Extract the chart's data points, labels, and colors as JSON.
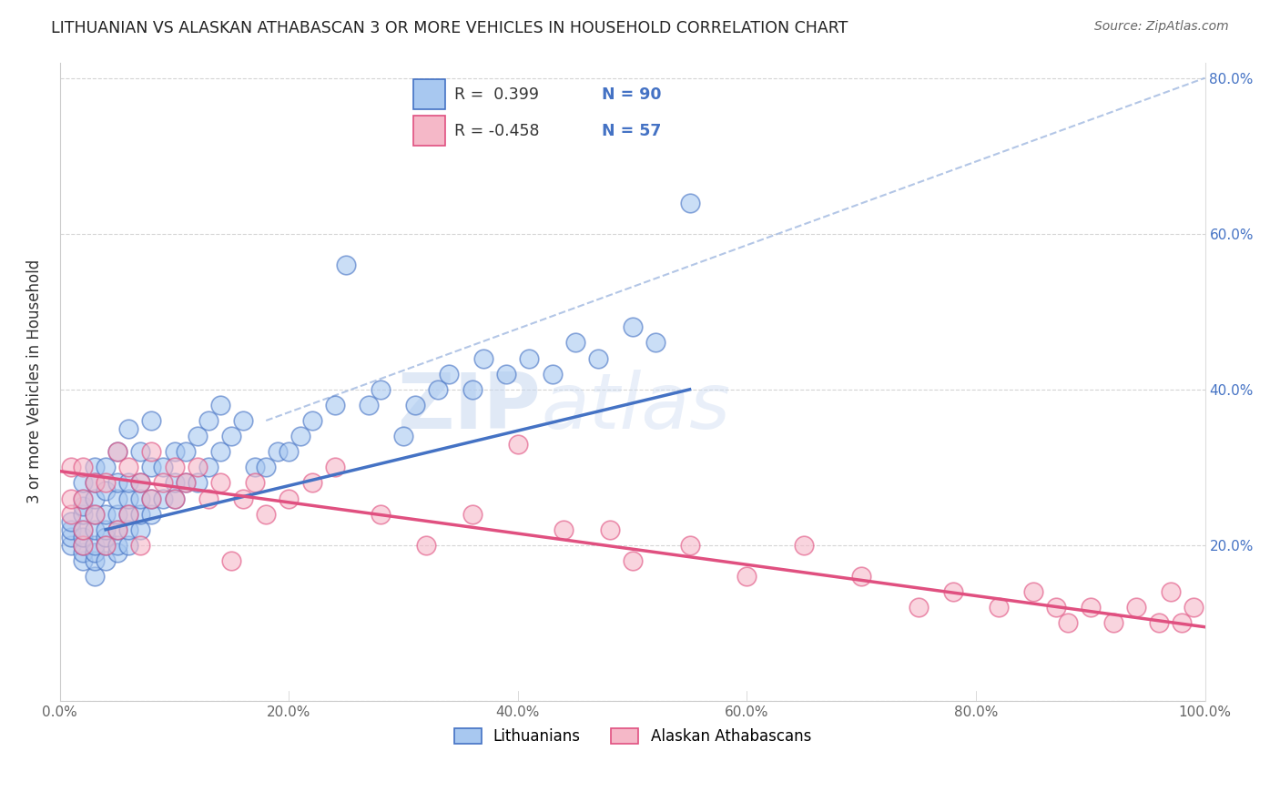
{
  "title": "LITHUANIAN VS ALASKAN ATHABASCAN 3 OR MORE VEHICLES IN HOUSEHOLD CORRELATION CHART",
  "source": "Source: ZipAtlas.com",
  "ylabel": "3 or more Vehicles in Household",
  "xlim": [
    0.0,
    1.0
  ],
  "ylim": [
    0.0,
    0.82
  ],
  "xticks": [
    0.0,
    0.2,
    0.4,
    0.6,
    0.8,
    1.0
  ],
  "yticks": [
    0.0,
    0.2,
    0.4,
    0.6,
    0.8
  ],
  "ytick_labels_left": [
    "",
    "",
    "",
    "",
    ""
  ],
  "xtick_labels": [
    "0.0%",
    "20.0%",
    "40.0%",
    "60.0%",
    "80.0%",
    "100.0%"
  ],
  "ytick_labels_right": [
    "20.0%",
    "40.0%",
    "60.0%",
    "80.0%"
  ],
  "blue_R": 0.399,
  "blue_N": 90,
  "pink_R": -0.458,
  "pink_N": 57,
  "blue_color": "#a8c8f0",
  "pink_color": "#f5b8c8",
  "blue_line_color": "#4472c4",
  "pink_line_color": "#e05080",
  "blue_dash_color": "#a0b8e0",
  "legend_label_blue": "Lithuanians",
  "legend_label_pink": "Alaskan Athabascans",
  "watermark_zip": "ZIP",
  "watermark_atlas": "atlas",
  "blue_line_x0": 0.04,
  "blue_line_y0": 0.22,
  "blue_line_x1": 0.55,
  "blue_line_y1": 0.4,
  "pink_line_x0": 0.0,
  "pink_line_y0": 0.295,
  "pink_line_x1": 1.0,
  "pink_line_y1": 0.095,
  "dash_line_x0": 0.18,
  "dash_line_y0": 0.36,
  "dash_line_x1": 1.0,
  "dash_line_y1": 0.8,
  "blue_scatter_x": [
    0.01,
    0.01,
    0.01,
    0.01,
    0.02,
    0.02,
    0.02,
    0.02,
    0.02,
    0.02,
    0.02,
    0.02,
    0.02,
    0.03,
    0.03,
    0.03,
    0.03,
    0.03,
    0.03,
    0.03,
    0.03,
    0.03,
    0.04,
    0.04,
    0.04,
    0.04,
    0.04,
    0.04,
    0.04,
    0.05,
    0.05,
    0.05,
    0.05,
    0.05,
    0.05,
    0.05,
    0.06,
    0.06,
    0.06,
    0.06,
    0.06,
    0.06,
    0.07,
    0.07,
    0.07,
    0.07,
    0.07,
    0.08,
    0.08,
    0.08,
    0.08,
    0.09,
    0.09,
    0.1,
    0.1,
    0.1,
    0.11,
    0.11,
    0.12,
    0.12,
    0.13,
    0.13,
    0.14,
    0.14,
    0.15,
    0.16,
    0.17,
    0.18,
    0.19,
    0.2,
    0.21,
    0.22,
    0.24,
    0.25,
    0.27,
    0.28,
    0.3,
    0.31,
    0.33,
    0.34,
    0.36,
    0.37,
    0.39,
    0.41,
    0.43,
    0.45,
    0.47,
    0.5,
    0.52,
    0.55
  ],
  "blue_scatter_y": [
    0.2,
    0.21,
    0.22,
    0.23,
    0.18,
    0.19,
    0.2,
    0.21,
    0.22,
    0.24,
    0.25,
    0.26,
    0.28,
    0.16,
    0.18,
    0.19,
    0.2,
    0.22,
    0.24,
    0.26,
    0.28,
    0.3,
    0.18,
    0.2,
    0.21,
    0.22,
    0.24,
    0.27,
    0.3,
    0.19,
    0.2,
    0.22,
    0.24,
    0.26,
    0.28,
    0.32,
    0.2,
    0.22,
    0.24,
    0.26,
    0.28,
    0.35,
    0.22,
    0.24,
    0.26,
    0.28,
    0.32,
    0.24,
    0.26,
    0.3,
    0.36,
    0.26,
    0.3,
    0.26,
    0.28,
    0.32,
    0.28,
    0.32,
    0.28,
    0.34,
    0.3,
    0.36,
    0.32,
    0.38,
    0.34,
    0.36,
    0.3,
    0.3,
    0.32,
    0.32,
    0.34,
    0.36,
    0.38,
    0.56,
    0.38,
    0.4,
    0.34,
    0.38,
    0.4,
    0.42,
    0.4,
    0.44,
    0.42,
    0.44,
    0.42,
    0.46,
    0.44,
    0.48,
    0.46,
    0.64
  ],
  "pink_scatter_x": [
    0.01,
    0.01,
    0.01,
    0.02,
    0.02,
    0.02,
    0.02,
    0.03,
    0.03,
    0.04,
    0.04,
    0.05,
    0.05,
    0.06,
    0.06,
    0.07,
    0.07,
    0.08,
    0.08,
    0.09,
    0.1,
    0.1,
    0.11,
    0.12,
    0.13,
    0.14,
    0.15,
    0.16,
    0.17,
    0.18,
    0.2,
    0.22,
    0.24,
    0.28,
    0.32,
    0.36,
    0.4,
    0.44,
    0.48,
    0.5,
    0.55,
    0.6,
    0.65,
    0.7,
    0.75,
    0.78,
    0.82,
    0.85,
    0.87,
    0.88,
    0.9,
    0.92,
    0.94,
    0.96,
    0.97,
    0.98,
    0.99
  ],
  "pink_scatter_y": [
    0.24,
    0.26,
    0.3,
    0.2,
    0.22,
    0.26,
    0.3,
    0.24,
    0.28,
    0.2,
    0.28,
    0.22,
    0.32,
    0.24,
    0.3,
    0.2,
    0.28,
    0.26,
    0.32,
    0.28,
    0.26,
    0.3,
    0.28,
    0.3,
    0.26,
    0.28,
    0.18,
    0.26,
    0.28,
    0.24,
    0.26,
    0.28,
    0.3,
    0.24,
    0.2,
    0.24,
    0.33,
    0.22,
    0.22,
    0.18,
    0.2,
    0.16,
    0.2,
    0.16,
    0.12,
    0.14,
    0.12,
    0.14,
    0.12,
    0.1,
    0.12,
    0.1,
    0.12,
    0.1,
    0.14,
    0.1,
    0.12
  ]
}
